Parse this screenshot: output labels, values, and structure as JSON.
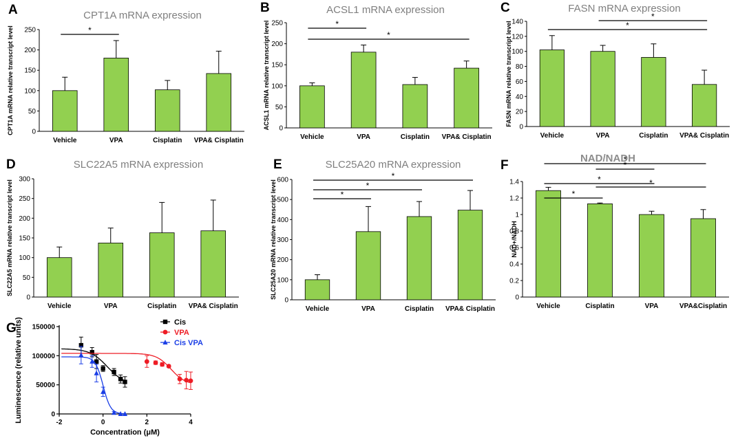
{
  "chart_data": [
    {
      "panel": "A",
      "type": "bar",
      "title": "CPT1A mRNA expression",
      "ylabel": "CPT1A mRNA relative transcript level",
      "categories": [
        "Vehicle",
        "VPA",
        "Cisplatin",
        "VPA& Cisplatin"
      ],
      "values": [
        100,
        180,
        102,
        142
      ],
      "errors": [
        33,
        43,
        23,
        55
      ],
      "ylim": [
        0,
        250
      ],
      "yticks": [
        0,
        50,
        100,
        150,
        200,
        250
      ],
      "significance": [
        {
          "from": 0,
          "to": 1,
          "label": "*"
        }
      ]
    },
    {
      "panel": "B",
      "type": "bar",
      "title": "ACSL1 mRNA expression",
      "ylabel": "ACSL1 mRNA relative transcript level",
      "categories": [
        "Vehicle",
        "VPA",
        "Cisplatin",
        "VPA& Cisplatin"
      ],
      "values": [
        100,
        180,
        103,
        142
      ],
      "errors": [
        7,
        17,
        17,
        17
      ],
      "ylim": [
        0,
        250
      ],
      "yticks": [
        0,
        50,
        100,
        150,
        200,
        250
      ],
      "significance": [
        {
          "from": 0,
          "to": 1,
          "label": "*"
        },
        {
          "from": 0,
          "to": 3,
          "label": "*"
        }
      ]
    },
    {
      "panel": "C",
      "type": "bar",
      "title": "FASN mRNA expression",
      "ylabel": "FASN mRNA relative transcript level",
      "categories": [
        "Vehicle",
        "VPA",
        "Cisplatin",
        "VPA& Cisplatin"
      ],
      "values": [
        102,
        100,
        92,
        56
      ],
      "errors": [
        19,
        8,
        18,
        19
      ],
      "ylim": [
        0,
        140
      ],
      "yticks": [
        0,
        20,
        40,
        60,
        80,
        100,
        120,
        140
      ],
      "significance": [
        {
          "from": 1,
          "to": 3,
          "label": "*"
        },
        {
          "from": 0,
          "to": 3,
          "label": "*"
        }
      ]
    },
    {
      "panel": "D",
      "type": "bar",
      "title": "SLC22A5 mRNA expression",
      "ylabel": "SLC22A5 mRNA relative transcript level",
      "categories": [
        "Vehicle",
        "VPA",
        "Cisplatin",
        "VPA& Cisplatin"
      ],
      "values": [
        100,
        137,
        163,
        168
      ],
      "errors": [
        27,
        38,
        77,
        78
      ],
      "ylim": [
        0,
        300
      ],
      "yticks": [
        0,
        50,
        100,
        150,
        200,
        250,
        300
      ],
      "significance": []
    },
    {
      "panel": "E",
      "type": "bar",
      "title": "SLC25A20 mRNA expression",
      "ylabel": "SLC25A20 mRNA relative transcript level",
      "categories": [
        "Vehicle",
        "VPA",
        "Cisplatin",
        "VPA& Cisplatin"
      ],
      "values": [
        100,
        340,
        415,
        447
      ],
      "errors": [
        25,
        125,
        75,
        98
      ],
      "ylim": [
        0,
        600
      ],
      "yticks": [
        0,
        100,
        200,
        300,
        400,
        500,
        600
      ],
      "significance": [
        {
          "from": 0,
          "to": 1,
          "label": "*"
        },
        {
          "from": 0,
          "to": 2,
          "label": "*"
        },
        {
          "from": 0,
          "to": 3,
          "label": "*"
        }
      ]
    },
    {
      "panel": "F",
      "type": "bar",
      "title": "NAD/NADH",
      "ylabel": "NAD+/NADH",
      "categories": [
        "Vehicle",
        "Cisplatin",
        "VPA",
        "VPA&Cisplatin"
      ],
      "values": [
        1.29,
        1.13,
        1.0,
        0.95
      ],
      "errors": [
        0.04,
        0.01,
        0.04,
        0.11
      ],
      "ylim": [
        0,
        1.4
      ],
      "yticks": [
        "0",
        "0.2",
        "0.4",
        "0.6",
        "0.8",
        "1",
        "1.2",
        "1.4"
      ],
      "significance": [
        {
          "from": 0,
          "to": 1,
          "label": "*"
        },
        {
          "from": 0,
          "to": 2,
          "label": "*"
        },
        {
          "from": 0,
          "to": 3,
          "label": "*"
        },
        {
          "from": 1,
          "to": 2,
          "label": "*"
        },
        {
          "from": 1,
          "to": 3,
          "label": "*"
        }
      ]
    },
    {
      "panel": "G",
      "type": "scatter",
      "xlabel": "Concentration (μM)",
      "ylabel": "Luminescence (relative units)",
      "xlim": [
        -2,
        4
      ],
      "xticks": [
        -2,
        0,
        2,
        4
      ],
      "ylim": [
        0,
        150000
      ],
      "yticks": [
        0,
        50000,
        100000,
        150000
      ],
      "series": [
        {
          "name": "Cis",
          "color": "#000000",
          "marker": "square",
          "x": [
            -1,
            -0.5,
            -0.3,
            0,
            0.5,
            0.8,
            1
          ],
          "y": [
            118000,
            106000,
            90000,
            78000,
            72000,
            60000,
            55000
          ],
          "err": [
            14000,
            8000,
            12000,
            5000,
            6000,
            7000,
            9000
          ],
          "fit": {
            "top": 112000,
            "bottom": 50000,
            "ec50": 0.2,
            "hill": 1.1
          }
        },
        {
          "name": "VPA",
          "color": "#ee1c25",
          "marker": "circle",
          "x": [
            2,
            2.4,
            2.7,
            3,
            3.5,
            3.8,
            4
          ],
          "y": [
            90000,
            88000,
            85000,
            82000,
            60000,
            58000,
            57000
          ],
          "err": [
            10000,
            3000,
            3000,
            2000,
            8000,
            15000,
            15000
          ],
          "fit": {
            "top": 104000,
            "bottom": 50000,
            "ec50": 3.1,
            "hill": 1.3
          }
        },
        {
          "name": "Cis VPA",
          "color": "#1a3ee6",
          "marker": "triangle",
          "x": [
            -1,
            -0.5,
            -0.3,
            0,
            0.5,
            0.8,
            1
          ],
          "y": [
            101000,
            90000,
            70000,
            38000,
            2000,
            0,
            0
          ],
          "err": [
            15000,
            10000,
            15000,
            8000,
            2000,
            0,
            0
          ],
          "fit": {
            "top": 98000,
            "bottom": 0,
            "ec50": 0.0,
            "hill": 2.5
          }
        }
      ]
    }
  ]
}
